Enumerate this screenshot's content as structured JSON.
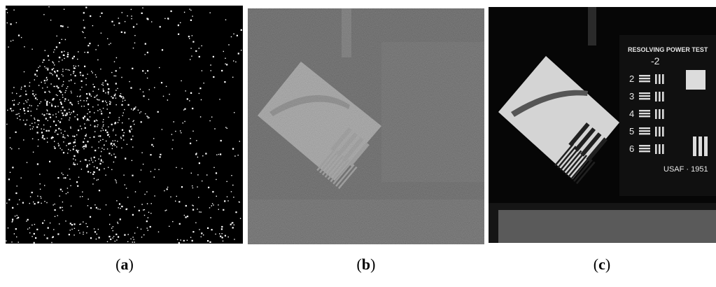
{
  "panels": [
    {
      "caption": {
        "prefix": "(",
        "letter": "a",
        "suffix": ")"
      }
    },
    {
      "caption": {
        "prefix": "(",
        "letter": "b",
        "suffix": ")"
      }
    },
    {
      "caption": {
        "prefix": "(",
        "letter": "c",
        "suffix": ")"
      },
      "target_text": {
        "title": "RESOLVING POWER TEST",
        "group": "-2",
        "rows": [
          "2",
          "3",
          "4",
          "5",
          "6"
        ],
        "footer": "USAF · 1951"
      }
    }
  ]
}
